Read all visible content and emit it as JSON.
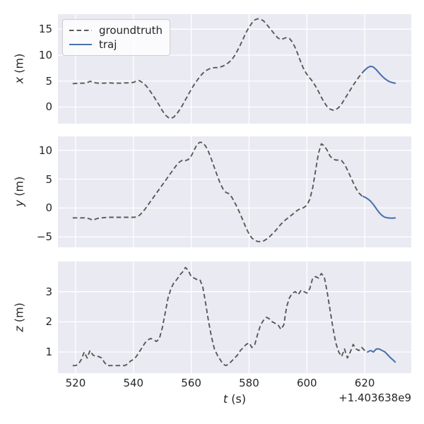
{
  "figure": {
    "colors": {
      "background": "#ffffff",
      "panel_background": "#eaeaf2",
      "grid": "#ffffff",
      "groundtruth": "#595959",
      "traj": "#4c72b0",
      "text": "#262626"
    }
  },
  "legend": {
    "entries": [
      {
        "label": "groundtruth",
        "style": "dashed",
        "color": "#595959"
      },
      {
        "label": "traj",
        "style": "solid",
        "color": "#4c72b0"
      }
    ]
  },
  "x_axis": {
    "label_var": "t",
    "label_unit": "(s)",
    "offset_text": "+1.403638e9",
    "ticks": [
      520,
      540,
      560,
      580,
      600,
      620
    ],
    "lim": [
      513.9,
      636.1
    ]
  },
  "chart_data": [
    {
      "type": "line",
      "ylabel_var": "x",
      "ylabel_unit": "(m)",
      "yticks": [
        0,
        5,
        10,
        15
      ],
      "ylim": [
        -3.2,
        17.9
      ],
      "series": [
        {
          "name": "groundtruth",
          "style": "dashed",
          "t0": 519,
          "dt": 1,
          "y": [
            4.5,
            4.55,
            4.55,
            4.6,
            4.6,
            4.7,
            4.95,
            4.8,
            4.65,
            4.6,
            4.6,
            4.6,
            4.65,
            4.65,
            4.6,
            4.6,
            4.6,
            4.6,
            4.65,
            4.65,
            4.7,
            4.75,
            5.0,
            5.1,
            4.75,
            4.3,
            3.7,
            2.9,
            2.1,
            1.2,
            0.3,
            -0.7,
            -1.5,
            -2.0,
            -2.2,
            -1.9,
            -1.3,
            -0.5,
            0.4,
            1.4,
            2.4,
            3.4,
            4.3,
            5.1,
            5.9,
            6.5,
            7.0,
            7.3,
            7.5,
            7.6,
            7.6,
            7.7,
            7.9,
            8.2,
            8.6,
            9.1,
            9.9,
            10.9,
            12.0,
            13.2,
            14.4,
            15.4,
            16.2,
            16.8,
            17.0,
            16.9,
            16.6,
            16.0,
            15.3,
            14.6,
            13.9,
            13.3,
            13.0,
            13.2,
            13.4,
            13.2,
            12.5,
            11.4,
            10.0,
            8.5,
            7.2,
            6.3,
            5.6,
            4.9,
            4.0,
            3.0,
            1.9,
            0.9,
            0.1,
            -0.4,
            -0.6,
            -0.5,
            -0.1,
            0.6,
            1.5,
            2.4,
            3.3,
            4.2,
            5.0,
            5.8,
            6.5,
            7.1,
            7.6
          ]
        },
        {
          "name": "traj",
          "style": "solid",
          "t": [
            620,
            621,
            622,
            623,
            624,
            625,
            626,
            627,
            628,
            629,
            630,
            630.5
          ],
          "y": [
            7.1,
            7.6,
            7.85,
            7.7,
            7.2,
            6.55,
            5.95,
            5.45,
            5.05,
            4.8,
            4.65,
            4.6
          ]
        }
      ]
    },
    {
      "type": "line",
      "ylabel_var": "y",
      "ylabel_unit": "(m)",
      "yticks": [
        -5,
        0,
        5,
        10
      ],
      "ylim": [
        -6.8,
        12.4
      ],
      "series": [
        {
          "name": "groundtruth",
          "style": "dashed",
          "t0": 519,
          "dt": 1,
          "y": [
            -1.7,
            -1.7,
            -1.7,
            -1.7,
            -1.7,
            -1.75,
            -1.9,
            -2.1,
            -1.9,
            -1.75,
            -1.7,
            -1.65,
            -1.6,
            -1.6,
            -1.6,
            -1.6,
            -1.6,
            -1.6,
            -1.6,
            -1.6,
            -1.6,
            -1.6,
            -1.55,
            -1.3,
            -0.8,
            -0.2,
            0.5,
            1.2,
            1.9,
            2.6,
            3.3,
            4.0,
            4.7,
            5.4,
            6.1,
            6.8,
            7.5,
            8.0,
            8.3,
            8.2,
            8.4,
            9.0,
            10.0,
            11.0,
            11.4,
            11.3,
            10.7,
            9.7,
            8.4,
            7.0,
            5.6,
            4.3,
            3.3,
            2.7,
            2.5,
            1.9,
            1.0,
            0.0,
            -1.1,
            -2.3,
            -3.5,
            -4.5,
            -5.2,
            -5.6,
            -5.8,
            -5.8,
            -5.7,
            -5.4,
            -5.0,
            -4.5,
            -4.0,
            -3.4,
            -2.8,
            -2.3,
            -1.9,
            -1.5,
            -1.1,
            -0.7,
            -0.3,
            -0.1,
            0.1,
            0.5,
            1.5,
            3.5,
            6.5,
            9.5,
            11.1,
            10.8,
            10.0,
            9.0,
            8.5,
            8.3,
            8.3,
            8.2,
            7.6,
            6.6,
            5.5,
            4.4,
            3.4,
            2.6,
            2.1,
            1.9
          ]
        },
        {
          "name": "traj",
          "style": "solid",
          "t": [
            619.5,
            620,
            621,
            622,
            623,
            624,
            625,
            626,
            627,
            628,
            629,
            630,
            630.5
          ],
          "y": [
            2.0,
            1.9,
            1.6,
            1.2,
            0.6,
            -0.1,
            -0.8,
            -1.3,
            -1.6,
            -1.7,
            -1.75,
            -1.75,
            -1.7
          ]
        }
      ]
    },
    {
      "type": "line",
      "ylabel_var": "z",
      "ylabel_unit": "(m)",
      "yticks": [
        1,
        2,
        3
      ],
      "ylim": [
        0.3,
        4.0
      ],
      "series": [
        {
          "name": "groundtruth",
          "style": "dashed",
          "t0": 519,
          "dt": 1,
          "y": [
            0.55,
            0.55,
            0.6,
            0.75,
            1.0,
            0.8,
            1.05,
            0.9,
            0.85,
            0.85,
            0.8,
            0.65,
            0.55,
            0.55,
            0.55,
            0.55,
            0.55,
            0.55,
            0.55,
            0.6,
            0.7,
            0.75,
            0.85,
            1.0,
            1.15,
            1.3,
            1.4,
            1.45,
            1.4,
            1.35,
            1.45,
            1.8,
            2.3,
            2.8,
            3.1,
            3.3,
            3.4,
            3.55,
            3.65,
            3.8,
            3.7,
            3.5,
            3.45,
            3.4,
            3.4,
            3.15,
            2.6,
            2.0,
            1.5,
            1.1,
            0.9,
            0.75,
            0.6,
            0.55,
            0.6,
            0.7,
            0.8,
            0.9,
            1.05,
            1.15,
            1.25,
            1.3,
            1.15,
            1.25,
            1.6,
            1.9,
            2.05,
            2.15,
            2.1,
            2.0,
            1.95,
            1.9,
            1.75,
            1.9,
            2.5,
            2.8,
            2.95,
            3.0,
            2.9,
            3.05,
            3.0,
            2.95,
            3.1,
            3.45,
            3.5,
            3.45,
            3.6,
            3.5,
            3.0,
            2.4,
            1.8,
            1.3,
            1.0,
            0.85,
            1.1,
            0.8,
            1.0,
            1.25,
            1.1,
            1.05,
            1.15,
            1.05,
            1.0
          ]
        },
        {
          "name": "traj",
          "style": "solid",
          "t": [
            621,
            622,
            623,
            624,
            625,
            626,
            627,
            628,
            629,
            630,
            630.5
          ],
          "y": [
            1.0,
            1.05,
            1.0,
            1.1,
            1.1,
            1.05,
            1.0,
            0.9,
            0.8,
            0.72,
            0.67
          ]
        }
      ]
    }
  ]
}
